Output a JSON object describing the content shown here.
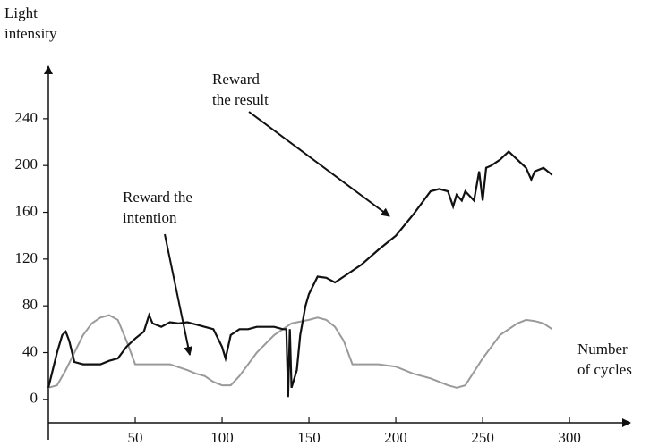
{
  "chart_data": {
    "type": "line",
    "y_label": [
      "Light",
      "intensity"
    ],
    "x_label": [
      "Number",
      "of cycles"
    ],
    "annotations": [
      {
        "lines": [
          "Reward",
          "the result"
        ]
      },
      {
        "lines": [
          "Reward the",
          "intention"
        ]
      }
    ],
    "xlim": [
      0,
      335
    ],
    "ylim": [
      -20,
      285
    ],
    "xticks": [
      50,
      100,
      150,
      200,
      250,
      300
    ],
    "yticks": [
      0,
      40,
      80,
      120,
      160,
      200,
      240
    ],
    "series": [
      {
        "name": "Reward the result",
        "color": "#111111",
        "x": [
          0,
          5,
          8,
          10,
          12,
          15,
          20,
          25,
          30,
          35,
          40,
          45,
          50,
          55,
          58,
          60,
          65,
          70,
          75,
          80,
          85,
          90,
          95,
          100,
          102,
          105,
          110,
          115,
          120,
          125,
          130,
          135,
          137,
          138,
          139,
          140,
          143,
          145,
          148,
          150,
          155,
          160,
          165,
          170,
          180,
          190,
          200,
          210,
          220,
          225,
          230,
          233,
          235,
          238,
          240,
          245,
          248,
          250,
          252,
          255,
          260,
          265,
          270,
          275,
          278,
          280,
          285,
          290
        ],
        "values": [
          10,
          40,
          55,
          58,
          50,
          32,
          30,
          30,
          30,
          33,
          35,
          45,
          52,
          58,
          72,
          65,
          62,
          66,
          65,
          66,
          64,
          62,
          60,
          45,
          35,
          55,
          60,
          60,
          62,
          62,
          62,
          60,
          60,
          2,
          60,
          10,
          25,
          55,
          80,
          90,
          105,
          104,
          100,
          105,
          115,
          128,
          140,
          158,
          178,
          180,
          178,
          165,
          175,
          170,
          178,
          170,
          195,
          170,
          198,
          200,
          205,
          212,
          205,
          198,
          188,
          195,
          198,
          192
        ]
      },
      {
        "name": "Reward the intention",
        "color": "#9a9a9a",
        "x": [
          0,
          5,
          10,
          15,
          20,
          25,
          30,
          35,
          40,
          45,
          50,
          55,
          60,
          70,
          80,
          85,
          90,
          95,
          100,
          105,
          110,
          120,
          130,
          140,
          150,
          155,
          160,
          165,
          170,
          175,
          180,
          190,
          200,
          210,
          220,
          230,
          235,
          240,
          250,
          260,
          270,
          275,
          280,
          285,
          290
        ],
        "values": [
          10,
          12,
          25,
          40,
          55,
          65,
          70,
          72,
          68,
          50,
          30,
          30,
          30,
          30,
          25,
          22,
          20,
          15,
          12,
          12,
          20,
          40,
          55,
          65,
          68,
          70,
          68,
          62,
          50,
          30,
          30,
          30,
          28,
          22,
          18,
          12,
          10,
          12,
          35,
          55,
          65,
          68,
          67,
          65,
          60
        ]
      }
    ]
  }
}
